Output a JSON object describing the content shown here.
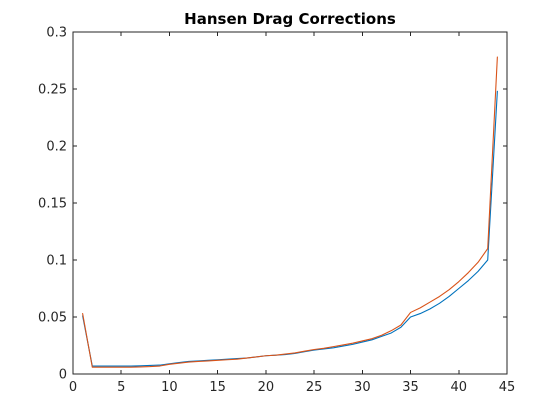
{
  "chart_data": {
    "type": "line",
    "title": "Hansen Drag Corrections",
    "xlabel": "",
    "ylabel": "",
    "xlim": [
      0,
      45
    ],
    "ylim": [
      0,
      0.3
    ],
    "x_ticks": [
      0,
      5,
      10,
      15,
      20,
      25,
      30,
      35,
      40,
      45
    ],
    "y_ticks": [
      0,
      0.05,
      0.1,
      0.15,
      0.2,
      0.25,
      0.3
    ],
    "x_tick_labels": [
      "0",
      "5",
      "10",
      "15",
      "20",
      "25",
      "30",
      "35",
      "40",
      "45"
    ],
    "y_tick_labels": [
      "0",
      "0.05",
      "0.1",
      "0.15",
      "0.2",
      "0.25",
      "0.3"
    ],
    "grid": false,
    "box": true,
    "legend": "none",
    "series": [
      {
        "color": "#0072BD",
        "x": [
          1,
          2,
          3,
          4,
          5,
          6,
          7,
          8,
          9,
          10,
          11,
          12,
          13,
          14,
          15,
          16,
          17,
          18,
          19,
          20,
          21,
          22,
          23,
          24,
          25,
          26,
          27,
          28,
          29,
          30,
          31,
          32,
          33,
          34,
          35,
          36,
          37,
          38,
          39,
          40,
          41,
          42,
          43,
          44
        ],
        "values": [
          0.051,
          0.007,
          0.007,
          0.007,
          0.007,
          0.007,
          0.0072,
          0.0075,
          0.0078,
          0.009,
          0.01,
          0.011,
          0.0115,
          0.012,
          0.0125,
          0.013,
          0.0135,
          0.014,
          0.015,
          0.016,
          0.0165,
          0.017,
          0.018,
          0.0195,
          0.021,
          0.022,
          0.023,
          0.0245,
          0.026,
          0.028,
          0.03,
          0.033,
          0.036,
          0.041,
          0.05,
          0.053,
          0.057,
          0.062,
          0.068,
          0.075,
          0.082,
          0.09,
          0.1,
          0.248
        ]
      },
      {
        "color": "#D95319",
        "x": [
          1,
          2,
          3,
          4,
          5,
          6,
          7,
          8,
          9,
          10,
          11,
          12,
          13,
          14,
          15,
          16,
          17,
          18,
          19,
          20,
          21,
          22,
          23,
          24,
          25,
          26,
          27,
          28,
          29,
          30,
          31,
          32,
          33,
          34,
          35,
          36,
          37,
          38,
          39,
          40,
          41,
          42,
          43,
          44
        ],
        "values": [
          0.053,
          0.006,
          0.006,
          0.006,
          0.006,
          0.006,
          0.0062,
          0.0065,
          0.007,
          0.0085,
          0.0095,
          0.0105,
          0.011,
          0.0115,
          0.012,
          0.0125,
          0.013,
          0.014,
          0.015,
          0.016,
          0.0165,
          0.0175,
          0.0185,
          0.02,
          0.0215,
          0.0225,
          0.024,
          0.0255,
          0.027,
          0.029,
          0.031,
          0.034,
          0.038,
          0.043,
          0.054,
          0.058,
          0.063,
          0.068,
          0.074,
          0.081,
          0.089,
          0.098,
          0.11,
          0.278
        ]
      }
    ]
  }
}
